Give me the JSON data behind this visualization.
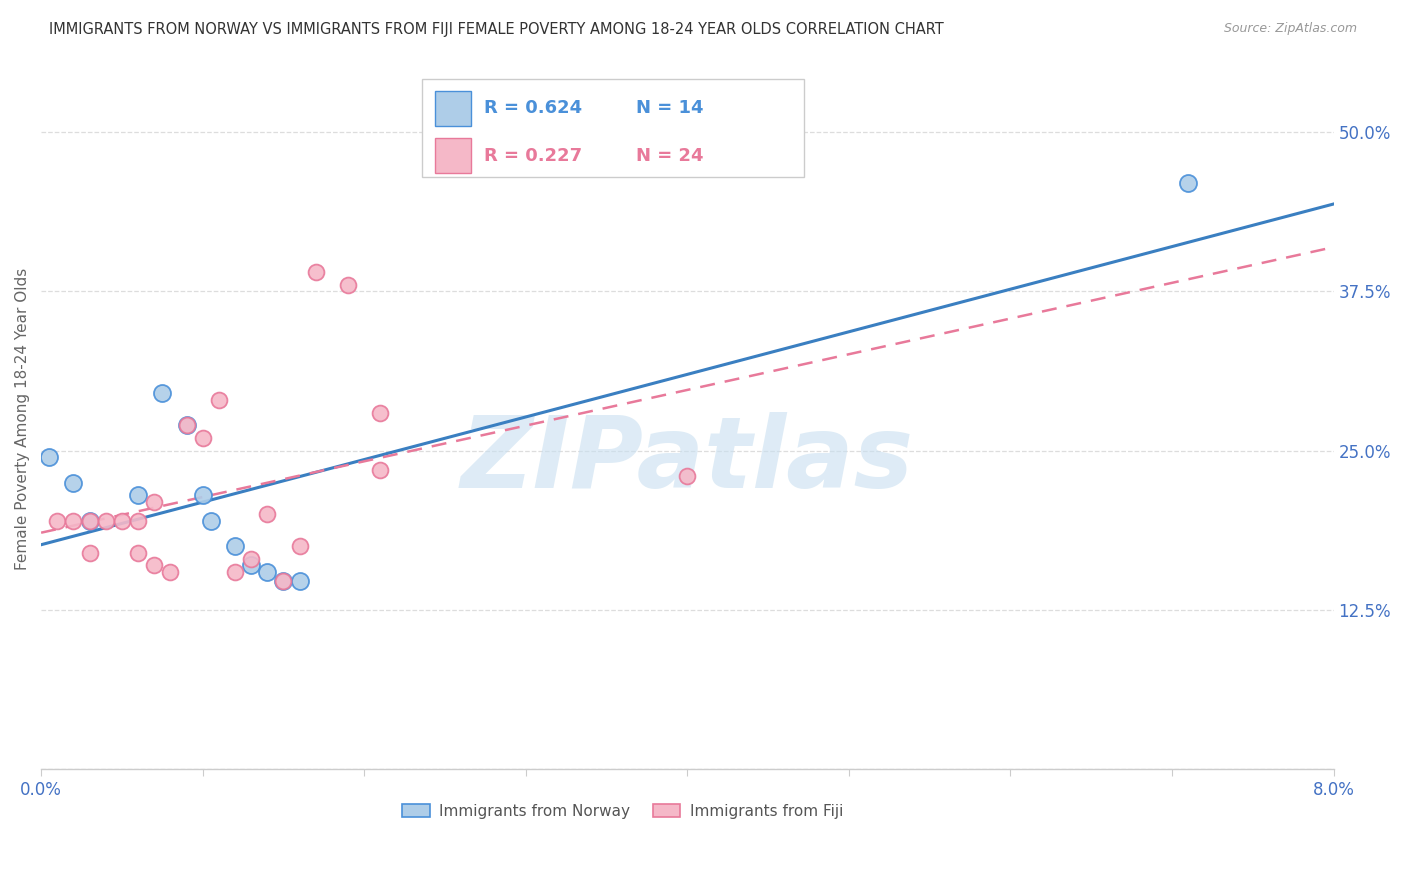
{
  "title": "IMMIGRANTS FROM NORWAY VS IMMIGRANTS FROM FIJI FEMALE POVERTY AMONG 18-24 YEAR OLDS CORRELATION CHART",
  "source": "Source: ZipAtlas.com",
  "ylabel": "Female Poverty Among 18-24 Year Olds",
  "xlim": [
    0.0,
    0.08
  ],
  "ylim": [
    0.0,
    0.55
  ],
  "yticks": [
    0.0,
    0.125,
    0.25,
    0.375,
    0.5
  ],
  "ytick_labels": [
    "",
    "12.5%",
    "25.0%",
    "37.5%",
    "50.0%"
  ],
  "xtick_positions": [
    0.0,
    0.01,
    0.02,
    0.03,
    0.04,
    0.05,
    0.06,
    0.07,
    0.08
  ],
  "norway_color": "#aecde8",
  "fiji_color": "#f5b8c8",
  "norway_edge_color": "#4a90d9",
  "fiji_edge_color": "#e8799a",
  "norway_line_color": "#3a7fc1",
  "fiji_line_color": "#e8799a",
  "legend_norway_fill": "#aecde8",
  "legend_fiji_fill": "#f5b8c8",
  "norway_R": 0.624,
  "norway_N": 14,
  "fiji_R": 0.227,
  "fiji_N": 24,
  "watermark_text": "ZIPatlas",
  "watermark_color": "#c8dff0",
  "norway_x": [
    0.0005,
    0.002,
    0.003,
    0.006,
    0.0075,
    0.009,
    0.01,
    0.0105,
    0.012,
    0.013,
    0.014,
    0.015,
    0.016,
    0.071
  ],
  "norway_y": [
    0.245,
    0.225,
    0.195,
    0.215,
    0.295,
    0.27,
    0.215,
    0.195,
    0.175,
    0.16,
    0.155,
    0.148,
    0.148,
    0.46
  ],
  "fiji_x": [
    0.001,
    0.002,
    0.003,
    0.003,
    0.004,
    0.005,
    0.006,
    0.006,
    0.007,
    0.007,
    0.008,
    0.009,
    0.01,
    0.011,
    0.012,
    0.013,
    0.014,
    0.015,
    0.016,
    0.017,
    0.019,
    0.021,
    0.021,
    0.04
  ],
  "fiji_y": [
    0.195,
    0.195,
    0.195,
    0.17,
    0.195,
    0.195,
    0.195,
    0.17,
    0.21,
    0.16,
    0.155,
    0.27,
    0.26,
    0.29,
    0.155,
    0.165,
    0.2,
    0.148,
    0.175,
    0.39,
    0.38,
    0.235,
    0.28,
    0.23
  ],
  "grid_color": "#dddddd",
  "spine_color": "#cccccc",
  "tick_label_color": "#4472c4",
  "ylabel_color": "#666666",
  "title_color": "#333333",
  "source_color": "#999999"
}
